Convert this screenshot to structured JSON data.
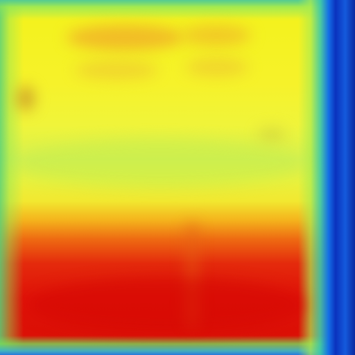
{
  "image": {
    "kind": "thermal-heatmap-photo",
    "palette": {
      "cold": "#0a3fb0",
      "cool": "#3cc8a0",
      "mild": "#9ae85a",
      "warm": "#f4f21e",
      "hot": "#ee6a12",
      "hottest": "#dc1006"
    }
  }
}
